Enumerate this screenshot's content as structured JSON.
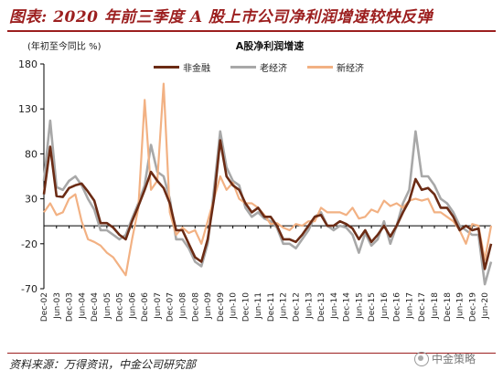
{
  "header": {
    "title": "图表: 2020 年前三季度 A 股上市公司净利润增速较快反弹"
  },
  "footer": {
    "source": "资料来源：万得资讯，中金公司研究部",
    "logo_text": "中金策略"
  },
  "colors": {
    "brand": "#9c1f1f",
    "series": [
      "#6b2b14",
      "#a8a8a8",
      "#f2b183"
    ]
  },
  "chart_data": {
    "type": "line",
    "title": "A股净利润增速",
    "ylabel": "(年初至今同比 %)",
    "ylim": [
      -70,
      180
    ],
    "yticks": [
      180,
      130,
      80,
      30,
      -20,
      -70
    ],
    "xtick_labels": [
      "Dec-02",
      "Jun-03",
      "Dec-03",
      "Jun-04",
      "Dec-04",
      "Jun-05",
      "Dec-05",
      "Jun-06",
      "Dec-06",
      "Jun-07",
      "Dec-07",
      "Jun-08",
      "Dec-08",
      "Jun-09",
      "Dec-09",
      "Jun-10",
      "Dec-10",
      "Jun-11",
      "Dec-11",
      "Jun-12",
      "Dec-12",
      "Jun-13",
      "Dec-13",
      "Jun-14",
      "Dec-14",
      "Jun-15",
      "Dec-15",
      "Jun-16",
      "Dec-16",
      "Jun-17",
      "Dec-17",
      "Jun-18",
      "Dec-18",
      "Jun-19",
      "Dec-19",
      "Jun-20"
    ],
    "x_start": "Dec-02",
    "x_step": "quarter",
    "series": [
      {
        "name": "非金融",
        "values": [
          35,
          88,
          33,
          32,
          42,
          45,
          47,
          38,
          28,
          3,
          3,
          -2,
          -10,
          -15,
          5,
          22,
          40,
          60,
          50,
          42,
          25,
          -5,
          -5,
          -20,
          -35,
          -40,
          -15,
          30,
          95,
          55,
          45,
          40,
          25,
          15,
          20,
          10,
          10,
          0,
          -15,
          -15,
          -18,
          -10,
          0,
          10,
          12,
          0,
          0,
          5,
          2,
          -3,
          -15,
          -5,
          -18,
          -10,
          0,
          -12,
          0,
          15,
          28,
          52,
          40,
          42,
          35,
          20,
          20,
          10,
          -5,
          0,
          -5,
          -3,
          -48,
          -20
        ]
      },
      {
        "name": "老经济",
        "values": [
          50,
          117,
          43,
          40,
          50,
          55,
          45,
          30,
          18,
          -5,
          -5,
          -10,
          -15,
          -10,
          8,
          25,
          45,
          90,
          60,
          55,
          30,
          -15,
          -15,
          -25,
          -40,
          -45,
          -20,
          40,
          105,
          65,
          50,
          45,
          20,
          10,
          15,
          8,
          5,
          -2,
          -20,
          -20,
          -25,
          -15,
          -5,
          10,
          15,
          0,
          -5,
          0,
          -2,
          -10,
          -30,
          -8,
          -22,
          -15,
          5,
          -20,
          0,
          25,
          40,
          105,
          55,
          55,
          45,
          30,
          25,
          15,
          0,
          -5,
          -10,
          -10,
          -65,
          -40
        ]
      },
      {
        "name": "新经济",
        "values": [
          15,
          25,
          12,
          15,
          30,
          35,
          5,
          -15,
          -18,
          -22,
          -30,
          -35,
          -45,
          -55,
          -15,
          20,
          140,
          40,
          50,
          158,
          15,
          -10,
          -2,
          -8,
          -5,
          -20,
          5,
          30,
          55,
          40,
          48,
          30,
          25,
          25,
          20,
          12,
          2,
          3,
          -2,
          -5,
          2,
          0,
          5,
          5,
          20,
          15,
          15,
          15,
          12,
          20,
          8,
          10,
          18,
          15,
          28,
          22,
          25,
          20,
          28,
          30,
          28,
          30,
          15,
          15,
          10,
          5,
          -5,
          -20,
          2,
          0,
          -38,
          0
        ]
      }
    ],
    "grid": false,
    "legend_position": "top"
  }
}
